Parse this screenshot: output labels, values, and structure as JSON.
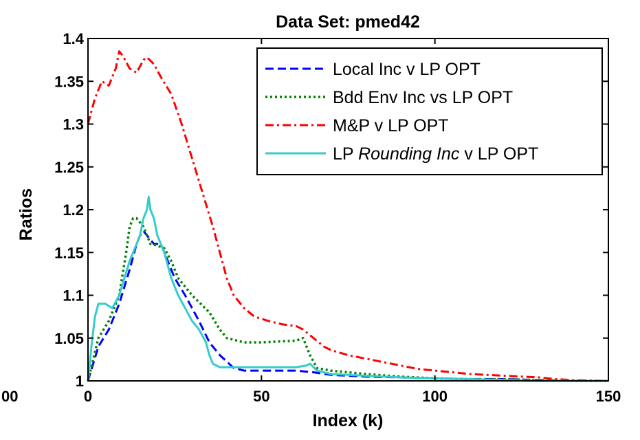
{
  "chart_data": {
    "type": "line",
    "title": "Data Set: pmed42",
    "xlabel": "Index (k)",
    "ylabel": "Ratios",
    "xlim": [
      0,
      150
    ],
    "ylim": [
      1,
      1.4
    ],
    "x_ticks": [
      {
        "value": 0,
        "label": "0"
      },
      {
        "value": 50,
        "label": "50"
      },
      {
        "value": 100,
        "label": "100"
      },
      {
        "value": 150,
        "label": "150"
      }
    ],
    "y_ticks": [
      {
        "value": 1.0,
        "label": "1"
      },
      {
        "value": 1.05,
        "label": "1.05"
      },
      {
        "value": 1.1,
        "label": "1.1"
      },
      {
        "value": 1.15,
        "label": "1.15"
      },
      {
        "value": 1.2,
        "label": "1.2"
      },
      {
        "value": 1.25,
        "label": "1.25"
      },
      {
        "value": 1.3,
        "label": "1.3"
      },
      {
        "value": 1.35,
        "label": "1.35"
      },
      {
        "value": 1.4,
        "label": "1.4"
      }
    ],
    "extra_tick_labels": [
      {
        "label": "00",
        "position": "left of x-axis origin"
      }
    ],
    "grid": false,
    "legend_position": "top-right",
    "series": [
      {
        "name": "Local Inc v LP OPT",
        "color": "#0000ff",
        "style": "dashed",
        "points": [
          [
            0,
            1.0
          ],
          [
            3,
            1.04
          ],
          [
            6,
            1.06
          ],
          [
            9,
            1.09
          ],
          [
            12,
            1.13
          ],
          [
            14,
            1.16
          ],
          [
            15,
            1.17
          ],
          [
            16,
            1.175
          ],
          [
            17,
            1.17
          ],
          [
            19,
            1.16
          ],
          [
            21,
            1.16
          ],
          [
            23,
            1.14
          ],
          [
            25,
            1.12
          ],
          [
            28,
            1.1
          ],
          [
            32,
            1.07
          ],
          [
            35,
            1.045
          ],
          [
            38,
            1.03
          ],
          [
            42,
            1.015
          ],
          [
            45,
            1.012
          ],
          [
            50,
            1.012
          ],
          [
            55,
            1.012
          ],
          [
            60,
            1.012
          ],
          [
            65,
            1.01
          ],
          [
            70,
            1.007
          ],
          [
            80,
            1.005
          ],
          [
            90,
            1.004
          ],
          [
            100,
            1.003
          ],
          [
            110,
            1.002
          ],
          [
            120,
            1.002
          ],
          [
            130,
            1.001
          ],
          [
            140,
            1.0
          ],
          [
            150,
            1.0
          ]
        ]
      },
      {
        "name": "Bdd Env Inc vs LP OPT",
        "color": "#008000",
        "style": "dotted",
        "points": [
          [
            0,
            1.0
          ],
          [
            3,
            1.05
          ],
          [
            6,
            1.07
          ],
          [
            9,
            1.1
          ],
          [
            11,
            1.15
          ],
          [
            12,
            1.18
          ],
          [
            13,
            1.19
          ],
          [
            14,
            1.19
          ],
          [
            15,
            1.185
          ],
          [
            16,
            1.18
          ],
          [
            17,
            1.17
          ],
          [
            18,
            1.16
          ],
          [
            20,
            1.158
          ],
          [
            22,
            1.155
          ],
          [
            24,
            1.14
          ],
          [
            26,
            1.12
          ],
          [
            30,
            1.1
          ],
          [
            35,
            1.08
          ],
          [
            38,
            1.06
          ],
          [
            40,
            1.05
          ],
          [
            45,
            1.045
          ],
          [
            50,
            1.045
          ],
          [
            55,
            1.046
          ],
          [
            60,
            1.047
          ],
          [
            62,
            1.05
          ],
          [
            64,
            1.03
          ],
          [
            66,
            1.015
          ],
          [
            70,
            1.012
          ],
          [
            80,
            1.008
          ],
          [
            90,
            1.005
          ],
          [
            100,
            1.003
          ],
          [
            110,
            1.002
          ],
          [
            120,
            1.002
          ],
          [
            130,
            1.001
          ],
          [
            140,
            1.0
          ],
          [
            150,
            1.0
          ]
        ]
      },
      {
        "name": "M&P v LP OPT",
        "color": "#ff0000",
        "style": "dashdot",
        "points": [
          [
            0,
            1.3
          ],
          [
            2,
            1.33
          ],
          [
            4,
            1.35
          ],
          [
            6,
            1.345
          ],
          [
            8,
            1.365
          ],
          [
            9,
            1.385
          ],
          [
            10,
            1.38
          ],
          [
            12,
            1.365
          ],
          [
            14,
            1.36
          ],
          [
            16,
            1.375
          ],
          [
            17,
            1.378
          ],
          [
            19,
            1.37
          ],
          [
            21,
            1.355
          ],
          [
            24,
            1.335
          ],
          [
            27,
            1.3
          ],
          [
            30,
            1.26
          ],
          [
            33,
            1.22
          ],
          [
            36,
            1.18
          ],
          [
            38,
            1.15
          ],
          [
            40,
            1.12
          ],
          [
            42,
            1.1
          ],
          [
            45,
            1.085
          ],
          [
            48,
            1.075
          ],
          [
            52,
            1.07
          ],
          [
            56,
            1.066
          ],
          [
            60,
            1.064
          ],
          [
            62,
            1.06
          ],
          [
            65,
            1.05
          ],
          [
            68,
            1.04
          ],
          [
            70,
            1.036
          ],
          [
            75,
            1.03
          ],
          [
            80,
            1.026
          ],
          [
            85,
            1.022
          ],
          [
            90,
            1.018
          ],
          [
            95,
            1.014
          ],
          [
            100,
            1.012
          ],
          [
            105,
            1.01
          ],
          [
            110,
            1.008
          ],
          [
            120,
            1.006
          ],
          [
            130,
            1.004
          ],
          [
            135,
            1.002
          ],
          [
            140,
            1.001
          ],
          [
            150,
            1.0
          ]
        ]
      },
      {
        "name": "LP Rounding Inc v LP OPT",
        "name_plain": "LP",
        "name_italic": "Rounding Inc",
        "name_suffix": "v LP OPT",
        "color": "#33cccc",
        "style": "solid",
        "points": [
          [
            0,
            1.0
          ],
          [
            1,
            1.04
          ],
          [
            2,
            1.075
          ],
          [
            3,
            1.09
          ],
          [
            5,
            1.09
          ],
          [
            7,
            1.085
          ],
          [
            9,
            1.1
          ],
          [
            12,
            1.14
          ],
          [
            15,
            1.17
          ],
          [
            16,
            1.19
          ],
          [
            17,
            1.2
          ],
          [
            17.5,
            1.215
          ],
          [
            18,
            1.2
          ],
          [
            19,
            1.19
          ],
          [
            20,
            1.17
          ],
          [
            22,
            1.15
          ],
          [
            24,
            1.12
          ],
          [
            26,
            1.1
          ],
          [
            28,
            1.085
          ],
          [
            30,
            1.07
          ],
          [
            32,
            1.06
          ],
          [
            34,
            1.045
          ],
          [
            35,
            1.03
          ],
          [
            36,
            1.02
          ],
          [
            38,
            1.016
          ],
          [
            45,
            1.016
          ],
          [
            50,
            1.016
          ],
          [
            55,
            1.016
          ],
          [
            60,
            1.016
          ],
          [
            63,
            1.018
          ],
          [
            64,
            1.02
          ],
          [
            66,
            1.012
          ],
          [
            70,
            1.008
          ],
          [
            80,
            1.006
          ],
          [
            90,
            1.004
          ],
          [
            100,
            1.003
          ],
          [
            110,
            1.002
          ],
          [
            120,
            1.001
          ],
          [
            130,
            1.0
          ],
          [
            140,
            1.0
          ],
          [
            150,
            1.0
          ]
        ]
      }
    ]
  }
}
